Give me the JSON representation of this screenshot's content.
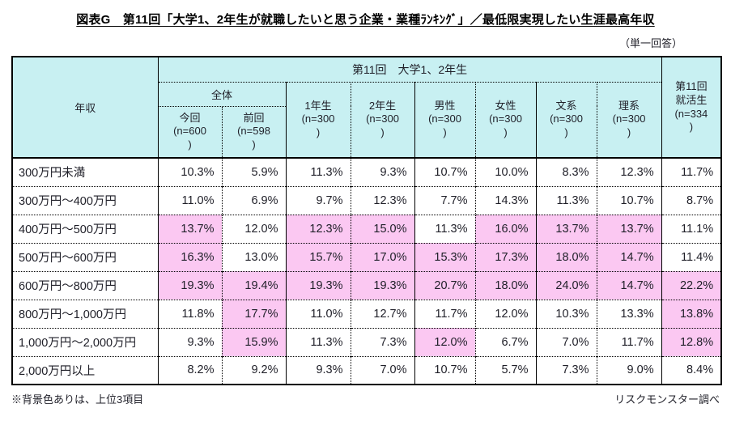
{
  "title": "図表G　第11回「大学1、2年生が就職したいと思う企業・業種ﾗﾝｷﾝｸﾞ」／最低限実現したい生涯最高年収",
  "note_single_answer": "（単一回答）",
  "footnote_left": "※背景色ありは、上位3項目",
  "footnote_right": "リスクモンスター調べ",
  "colors": {
    "header_bg": "#c8f0f2",
    "highlight_bg": "#fbc8f2",
    "border": "#000000",
    "text": "#1f1f28"
  },
  "chart_data": {
    "type": "table",
    "title": "最低限実現したい生涯最高年収",
    "row_header": "年収",
    "group_header": "第11回　大学1、2年生",
    "subgroup_header": "全体",
    "column_headers": [
      "今回\n(n=600\n)",
      "前回\n(n=598\n)",
      "1年生\n(n=300\n)",
      "2年生\n(n=300\n)",
      "男性\n(n=300\n)",
      "女性\n(n=300\n)",
      "文系\n(n=300\n)",
      "理系\n(n=300\n)"
    ],
    "last_column_header": "第11回\n就活生\n(n=334\n)",
    "highlight_meaning": "上位3項目",
    "rows": [
      {
        "label": "300万円未満",
        "values": [
          "10.3%",
          "5.9%",
          "11.3%",
          "9.3%",
          "10.7%",
          "10.0%",
          "8.3%",
          "12.3%",
          "11.7%"
        ],
        "highlight": [
          0,
          0,
          0,
          0,
          0,
          0,
          0,
          0,
          0
        ]
      },
      {
        "label": "300万円～400万円",
        "values": [
          "11.0%",
          "6.9%",
          "9.7%",
          "12.3%",
          "7.7%",
          "14.3%",
          "11.3%",
          "10.7%",
          "8.7%"
        ],
        "highlight": [
          0,
          0,
          0,
          0,
          0,
          0,
          0,
          0,
          0
        ]
      },
      {
        "label": "400万円～500万円",
        "values": [
          "13.7%",
          "12.0%",
          "12.3%",
          "15.0%",
          "11.3%",
          "16.0%",
          "13.7%",
          "13.7%",
          "11.1%"
        ],
        "highlight": [
          1,
          0,
          1,
          1,
          0,
          1,
          1,
          1,
          0
        ]
      },
      {
        "label": "500万円～600万円",
        "values": [
          "16.3%",
          "13.0%",
          "15.7%",
          "17.0%",
          "15.3%",
          "17.3%",
          "18.0%",
          "14.7%",
          "11.4%"
        ],
        "highlight": [
          1,
          0,
          1,
          1,
          1,
          1,
          1,
          1,
          0
        ]
      },
      {
        "label": "600万円～800万円",
        "values": [
          "19.3%",
          "19.4%",
          "19.3%",
          "19.3%",
          "20.7%",
          "18.0%",
          "24.0%",
          "14.7%",
          "22.2%"
        ],
        "highlight": [
          1,
          1,
          1,
          1,
          1,
          1,
          1,
          1,
          1
        ]
      },
      {
        "label": "800万円～1,000万円",
        "values": [
          "11.8%",
          "17.7%",
          "11.0%",
          "12.7%",
          "11.7%",
          "12.0%",
          "10.3%",
          "13.3%",
          "13.8%"
        ],
        "highlight": [
          0,
          1,
          0,
          0,
          0,
          0,
          0,
          0,
          1
        ]
      },
      {
        "label": "1,000万円～2,000万円",
        "values": [
          "9.3%",
          "15.9%",
          "11.3%",
          "7.3%",
          "12.0%",
          "6.7%",
          "7.0%",
          "11.7%",
          "12.8%"
        ],
        "highlight": [
          0,
          1,
          0,
          0,
          1,
          0,
          0,
          0,
          1
        ]
      },
      {
        "label": "2,000万円以上",
        "values": [
          "8.2%",
          "9.2%",
          "9.3%",
          "7.0%",
          "10.7%",
          "5.7%",
          "7.3%",
          "9.0%",
          "8.4%"
        ],
        "highlight": [
          0,
          0,
          0,
          0,
          0,
          0,
          0,
          0,
          0
        ]
      }
    ]
  }
}
